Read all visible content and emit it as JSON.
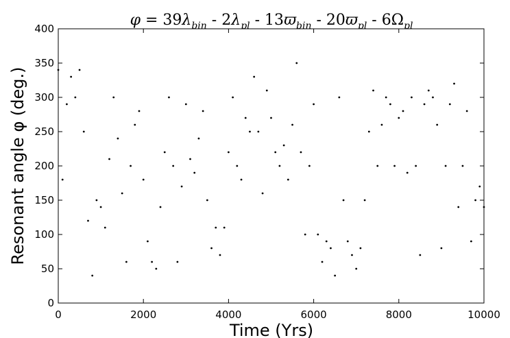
{
  "chart_data": {
    "type": "scatter",
    "title": "φ = 39λ_bin - 2λ_pl - 13ϖ_bin - 20ϖ_pl - 6Ω_pl",
    "title_parts": {
      "phi": "φ",
      "eq": " = 39",
      "lam": "λ",
      "bin": "bin",
      "m1": " - 2",
      "pl": "pl",
      "m2": " - 13",
      "varpi": "ϖ",
      "m3": " - 20",
      "m4": " - 6",
      "omega": "Ω"
    },
    "xlabel": "Time (Yrs)",
    "ylabel": "Resonant angle φ (deg.)",
    "xlim": [
      0,
      10000
    ],
    "ylim": [
      0,
      400
    ],
    "xticks": [
      0,
      2000,
      4000,
      6000,
      8000,
      10000
    ],
    "yticks": [
      0,
      50,
      100,
      150,
      200,
      250,
      300,
      350,
      400
    ],
    "grid": false,
    "legend": "none",
    "marker_color": "#000000",
    "series": [
      {
        "description_of_pattern": "angle circulates and librates: points wrap 0–360 deg repeatedly over 10000 yrs",
        "x": [
          0,
          100,
          200,
          300,
          400,
          500,
          600,
          700,
          800,
          900,
          1000,
          1100,
          1200,
          1300,
          1400,
          1500,
          1600,
          1700,
          1800,
          1900,
          2000,
          2100,
          2200,
          2300,
          2400,
          2500,
          2600,
          2700,
          2800,
          2900,
          3000,
          3100,
          3200,
          3300,
          3400,
          3500,
          3600,
          3700,
          3800,
          3900,
          4000,
          4100,
          4200,
          4300,
          4400,
          4500,
          4600,
          4700,
          4800,
          4900,
          5000,
          5100,
          5200,
          5300,
          5400,
          5500,
          5600,
          5700,
          5800,
          5900,
          6000,
          6100,
          6200,
          6300,
          6400,
          6500,
          6600,
          6700,
          6800,
          6900,
          7000,
          7100,
          7200,
          7300,
          7400,
          7500,
          7600,
          7700,
          7800,
          7900,
          8000,
          8100,
          8200,
          8300,
          8400,
          8500,
          8600,
          8700,
          8800,
          8900,
          9000,
          9100,
          9200,
          9300,
          9400,
          9500,
          9600,
          9700,
          9800,
          9900,
          10000
        ],
        "y": [
          340,
          180,
          290,
          330,
          300,
          340,
          250,
          120,
          40,
          150,
          140,
          110,
          210,
          300,
          240,
          160,
          60,
          200,
          260,
          280,
          180,
          90,
          60,
          50,
          140,
          220,
          300,
          200,
          60,
          170,
          290,
          210,
          190,
          240,
          280,
          150,
          80,
          110,
          70,
          110,
          220,
          300,
          200,
          180,
          270,
          250,
          330,
          250,
          160,
          310,
          270,
          220,
          200,
          230,
          180,
          260,
          350,
          220,
          100,
          200,
          290,
          100,
          60,
          90,
          80,
          40,
          300,
          150,
          90,
          70,
          50,
          80,
          150,
          250,
          310,
          200,
          260,
          300,
          290,
          200,
          270,
          280,
          190,
          300,
          200,
          70,
          290,
          310,
          300,
          260,
          80,
          200,
          290,
          320,
          140,
          200,
          280,
          90,
          150,
          170,
          140
        ]
      }
    ]
  }
}
